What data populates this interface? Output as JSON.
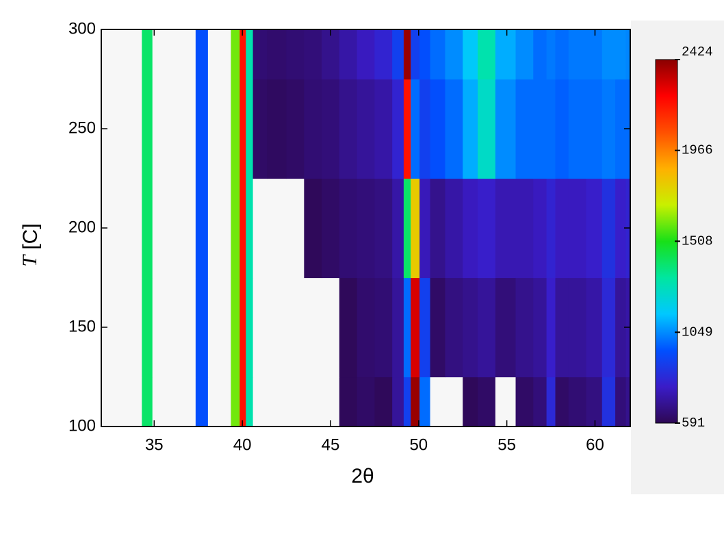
{
  "chart_data": {
    "type": "heatmap",
    "x_label": "2θ",
    "y_label_italic": "T",
    "y_label_rest": " [C]",
    "xlim": [
      32,
      62
    ],
    "ylim": [
      100,
      300
    ],
    "xticks": [
      35,
      40,
      45,
      50,
      55,
      60
    ],
    "yticks": [
      100,
      150,
      200,
      250,
      300
    ],
    "zlim": [
      591,
      2424
    ],
    "zticks": [
      591,
      1049,
      1508,
      1966,
      2424
    ],
    "colormap": [
      "#2e0854",
      "#3a1cc8",
      "#0050ff",
      "#00c8ff",
      "#00e6a0",
      "#18e018",
      "#c8f000",
      "#ffb000",
      "#ff5000",
      "#ff0000",
      "#8a0000"
    ],
    "under_color": "#f7f7f7",
    "x": [
      32,
      33,
      34,
      34.6,
      35.2,
      36,
      37,
      37.7,
      38.4,
      39,
      39.7,
      40,
      40.4,
      40.8,
      42,
      43,
      44,
      45,
      46,
      47,
      48,
      49,
      49.3,
      49.8,
      50.3,
      51,
      52,
      53,
      53.7,
      55,
      56,
      57,
      57.5,
      58,
      59,
      60,
      60.8,
      61.5,
      62
    ],
    "y": [
      100,
      150,
      200,
      250,
      300
    ],
    "z": [
      [
        520,
        510,
        530,
        1400,
        560,
        520,
        540,
        950,
        540,
        560,
        1600,
        2200,
        1300,
        560,
        530,
        530,
        540,
        560,
        600,
        620,
        600,
        700,
        900,
        2400,
        1000,
        580,
        590,
        600,
        620,
        580,
        620,
        650,
        820,
        620,
        640,
        660,
        850,
        650,
        680
      ],
      [
        520,
        510,
        530,
        1400,
        540,
        520,
        540,
        950,
        520,
        560,
        1600,
        2200,
        1300,
        560,
        540,
        540,
        560,
        580,
        600,
        630,
        640,
        700,
        1000,
        2300,
        900,
        620,
        660,
        680,
        700,
        650,
        680,
        700,
        780,
        700,
        700,
        720,
        820,
        700,
        720
      ],
      [
        520,
        510,
        530,
        1400,
        540,
        520,
        540,
        950,
        520,
        560,
        1600,
        2200,
        1300,
        580,
        560,
        570,
        600,
        620,
        640,
        650,
        660,
        720,
        1400,
        1800,
        750,
        680,
        720,
        760,
        780,
        740,
        740,
        760,
        800,
        760,
        760,
        780,
        850,
        780,
        800
      ],
      [
        520,
        510,
        530,
        1400,
        540,
        520,
        540,
        950,
        520,
        560,
        1600,
        2200,
        1300,
        620,
        610,
        620,
        640,
        650,
        680,
        700,
        720,
        800,
        2200,
        1000,
        900,
        950,
        1000,
        1100,
        1250,
        1050,
        1000,
        1000,
        1000,
        980,
        1000,
        1000,
        1020,
        1000,
        1000
      ],
      [
        540,
        510,
        530,
        1400,
        560,
        520,
        540,
        950,
        540,
        560,
        1600,
        2200,
        1300,
        640,
        630,
        640,
        650,
        680,
        720,
        760,
        800,
        900,
        2400,
        900,
        950,
        1000,
        1050,
        1150,
        1300,
        1100,
        1050,
        1000,
        1020,
        1000,
        1020,
        1020,
        1050,
        1050,
        1040
      ]
    ]
  }
}
